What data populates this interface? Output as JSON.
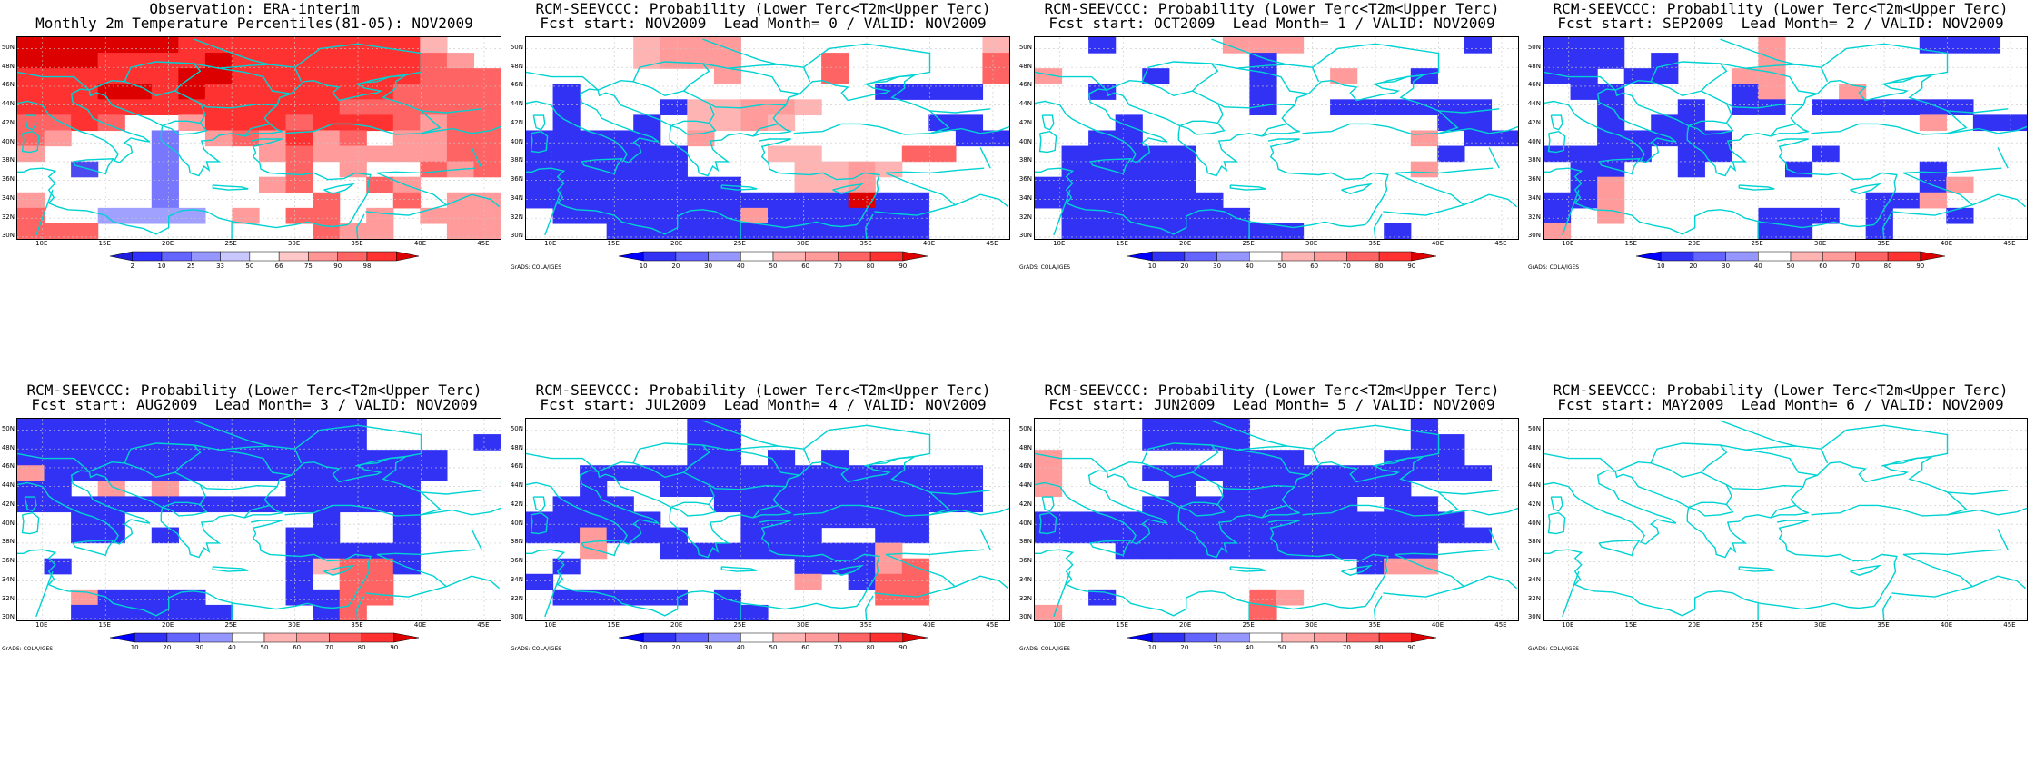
{
  "lat_ticks": [
    "50N",
    "48N",
    "46N",
    "44N",
    "42N",
    "40N",
    "38N",
    "36N",
    "34N",
    "32N",
    "30N"
  ],
  "lon_ticks": [
    "10E",
    "15E",
    "20E",
    "25E",
    "30E",
    "35E",
    "40E",
    "45E"
  ],
  "credit": "GrADS: COLA/IGES",
  "palette": {
    "vdb": "#0000ff",
    "db": "#3232f5",
    "mb": "#4b4bf0",
    "lb": "#7878ff",
    "vlb": "#a0a0ff",
    "w": "#ffffff",
    "vlr": "#ffb4b4",
    "lr": "#ff9b9b",
    "mr": "#ff6464",
    "r": "#ff3232",
    "dr": "#dc0000",
    "coast": "#00d2d2",
    "grid": "#c8c8c8"
  },
  "panels": [
    {
      "title1": "Observation: ERA-interim",
      "title2": "Monthly 2m Temperature Percentiles(81-05): NOV2009",
      "cbar": {
        "colors": [
          "#1e1edc",
          "#3232ff",
          "#6464ff",
          "#9696ff",
          "#c8c8ff",
          "#ffffff",
          "#ffc8c8",
          "#ff9696",
          "#ff6464",
          "#ff3232",
          "#dc0000"
        ],
        "labels": [
          "2",
          "10",
          "25",
          "33",
          "50",
          "66",
          "75",
          "90",
          "98"
        ]
      },
      "grid": [
        "dr dr dr dr dr dr r r r r r r r r r vlr w w",
        "dr dr dr r r r r dr r r r r r r r mr lr w",
        "r r r r r r dr dr r r r r r r r mr mr mr",
        "r r r dr dr r dr r r r r r r r mr mr mr mr",
        "r r r r r r r r r r r r mr mr mr mr mr mr",
        "mr mr r mr w w lr r r r mr r r r mr lr mr mr",
        "mr lr w w w lb w lr mr lr r lr mr w lr lr mr mr",
        "lr w w w w lb w w w lr mr lr lr lr lr lr mr mr",
        "w w mb w w lb w w w w mr w lr w w mr lr mr",
        "w w w w w lb w w w lr mr w w mr lr w w w",
        "lr w w w w lb w w w w w mr w w mr w lr lr",
        "mr w w vlb vlb vlb vlb w lr w mr mr w lr w lr lr lr",
        "mr mr mr w w w w w w w w mr lr lr w w lr lr"
      ]
    },
    {
      "title1": "RCM-SEEVCCC: Probability (Lower Terc<T2m<Upper Terc)",
      "title2": "Fcst start: NOV2009  Lead Month= 0 / VALID: NOV2009",
      "cbar": {
        "colors": [
          "#0000ff",
          "#3232f5",
          "#6464ff",
          "#9696ff",
          "#ffffff",
          "#ffb4b4",
          "#ff9b9b",
          "#ff6464",
          "#ff3232",
          "#dc0000"
        ],
        "labels": [
          "10",
          "20",
          "30",
          "40",
          "50",
          "60",
          "70",
          "80",
          "90"
        ]
      },
      "grid": [
        "w w w w vlr lr lr lr w w w w w w w w w vlr",
        "w w w w vlr lr lr lr w w w mr w w w w w mr",
        "w w w w w w w lr w w w mr w w w w w mr",
        "w db w w w w w w w w w w w db db db db w",
        "w db w w w db vlr vlr lr lr vlr w w w w w w",
        "w db w w db w vlr vlr lr vlr w w w w w db db",
        "db db db db db w lr w w w w w w w w w db db",
        "db db db db db db w w w vlr vlr w w w mr mr w w",
        "db db db db db db w w w w vlr vlr lr vlr w w w w",
        "db db db db db db db db w w vlr vlr lr w w w w w",
        "db db db db db db db db db db db db dr db db w w w",
        "w db db db db db db db lr db db db db db db w w w",
        "w w w db db db db db db db db db db db db w w w"
      ]
    },
    {
      "title1": "RCM-SEEVCCC: Probability (Lower Terc<T2m<Upper Terc)",
      "title2": "Fcst start: OCT2009  Lead Month= 1 / VALID: NOV2009",
      "cbar": {
        "colors": [
          "#0000ff",
          "#3232f5",
          "#6464ff",
          "#9696ff",
          "#ffffff",
          "#ffb4b4",
          "#ff9b9b",
          "#ff6464",
          "#ff3232",
          "#dc0000"
        ],
        "labels": [
          "10",
          "20",
          "30",
          "40",
          "50",
          "60",
          "70",
          "80",
          "90"
        ]
      },
      "grid": [
        "w w db w w w w lr lr lr w w w w w w db w",
        "w w w w w w w w db w w w w w w w w w",
        "lr w w w db w w w db w w lr w w db w w w",
        "w w db w w w w w db w w w w w w w w w",
        "w w w w w w w w db w w db db db db db db w",
        "w w w db w w w w w w w w w w w db db w",
        "w w db db w w w w w w w w w w lr w db db",
        "w db db db db db w w w w w w w w w db w w",
        "w db db db db db w w w w w w w w lr w w w",
        "db db db db db db w w w w w w w w w w w w",
        "db db db db db db db w w w w w w w w w w w",
        "w db db db db db db db w w w w w w w w w w",
        "w db db db db db db db db db w w w db w w w w"
      ]
    },
    {
      "title1": "RCM-SEEVCCC: Probability (Lower Terc<T2m<Upper Terc)",
      "title2": "Fcst start: SEP2009  Lead Month= 2 / VALID: NOV2009",
      "cbar": {
        "colors": [
          "#0000ff",
          "#3232f5",
          "#6464ff",
          "#9696ff",
          "#ffffff",
          "#ffb4b4",
          "#ff9b9b",
          "#ff6464",
          "#ff3232",
          "#dc0000"
        ],
        "labels": [
          "10",
          "20",
          "30",
          "40",
          "50",
          "60",
          "70",
          "80",
          "90"
        ]
      },
      "grid": [
        "db db db w w w w w lr w w w w w db db db w",
        "db db db w db w w w lr w w w w w w w w w",
        "db db w db db w w lr lr w w w w w w w w w",
        "w db db w w w w db lr w w lr w w w w w w",
        "w w db w w db w db db w db db db db db db w w",
        "w w db w db db w w w w w w w w lr w db db",
        "w w db db db db db w w w w w w w w w w w",
        "db db db db w db db w w w db w w w w w w w",
        "w db db w w db w w w db w w w w db w w w",
        "w db lr w w w w w w w w w w w db lr w w",
        "db db lr w w w w w w w w w db db lr w w w",
        "db w lr w w w w w db db db w db w w db w w",
        "lr w w w w w w w db db w w db w w w w w"
      ]
    },
    {
      "title1": "RCM-SEEVCCC: Probability (Lower Terc<T2m<Upper Terc)",
      "title2": "Fcst start: AUG2009  Lead Month= 3 / VALID: NOV2009",
      "cbar": {
        "colors": [
          "#0000ff",
          "#3232f5",
          "#6464ff",
          "#9696ff",
          "#ffffff",
          "#ffb4b4",
          "#ff9b9b",
          "#ff6464",
          "#ff3232",
          "#dc0000"
        ],
        "labels": [
          "10",
          "20",
          "30",
          "40",
          "50",
          "60",
          "70",
          "80",
          "90"
        ]
      },
      "grid": [
        "db db db db db db db db db db db db db w w w w w",
        "db db db db db db db db db db db db db w w w w db",
        "db db db db db db db db db db db db db db db db w w",
        "lr db db db db db db db db db db db db db db db w w",
        "db db w lr w lr w w w w db db db db db w w w",
        "db db db db db db db db db db db db db db db w w w",
        "w w db db w w w w w w w db w w db w w w",
        "w w db db w db w w w w db db w w db w w w",
        "w w w w w w w w w w db db db db db w w w",
        "w db w w w w w w w w db vlr mr mr db w w w",
        "w w w w w w w w w w db w mr mr w w w w",
        "w w lr db db db db w w w db db mr mr w w w w",
        "w w db db db db db db w w w db mr w w w w w"
      ]
    },
    {
      "title1": "RCM-SEEVCCC: Probability (Lower Terc<T2m<Upper Terc)",
      "title2": "Fcst start: JUL2009  Lead Month= 4 / VALID: NOV2009",
      "cbar": {
        "colors": [
          "#0000ff",
          "#3232f5",
          "#6464ff",
          "#9696ff",
          "#ffffff",
          "#ffb4b4",
          "#ff9b9b",
          "#ff6464",
          "#ff3232",
          "#dc0000"
        ],
        "labels": [
          "10",
          "20",
          "30",
          "40",
          "50",
          "60",
          "70",
          "80",
          "90"
        ]
      },
      "grid": [
        "w w w w w w db db w w w w w w w w w w",
        "w w w w w w db db w w w w w w w w w w",
        "w w w w w w db db w db w db w w w w w w",
        "w w db db db db db db db db db db db db db db db w",
        "w w db w w db db db db db db db db db db db db w",
        "w db db db w w w db db db db db db db db db db w",
        "db db db db db w w w db db db db db db db w w w",
        "db db lr db db db w w db db db w w db db w w w",
        "w w lr w w db db db db db db db db lr w w w w",
        "w db w w w w w w w w db db db lr mr w w w",
        "db w w w w w w w w w lr w db mr mr w w w",
        "w db db db db db w db w w w w w mr mr w w w",
        "w w w w w w w db db w w w w w w w w w"
      ]
    },
    {
      "title1": "RCM-SEEVCCC: Probability (Lower Terc<T2m<Upper Terc)",
      "title2": "Fcst start: JUN2009  Lead Month= 5 / VALID: NOV2009",
      "cbar": {
        "colors": [
          "#0000ff",
          "#3232f5",
          "#6464ff",
          "#9696ff",
          "#ffffff",
          "#ffb4b4",
          "#ff9b9b",
          "#ff6464",
          "#ff3232",
          "#dc0000"
        ],
        "labels": [
          "10",
          "20",
          "30",
          "40",
          "50",
          "60",
          "70",
          "80",
          "90"
        ]
      },
      "grid": [
        "w w w w db db db db w w w w w w db w w w",
        "w w w w db db db db w w w w w w db db w w",
        "lr w w w w w w db db db w w w db db db w w",
        "lr w w w db db db db db db db db db db db db db w",
        "lr w w w w db w db db db db db db db w w w w",
        "w w w w db db db db db db db db w db db w w w",
        "db db db db db db db db db db db db db db db db w w",
        "db db db db db db db db db db db db db db db db db w",
        "w w w db db db db db db db db db db db db w w w",
        "w w w w w w w w w w w w db lr lr w w w",
        "w w w w w w w w w w w w w w w w w w",
        "w w db w w w w w mr lr w w w w w w w w",
        "lr w w w w w w w mr w w w w w w w w w"
      ]
    },
    {
      "title1": "RCM-SEEVCCC: Probability (Lower Terc<T2m<Upper Terc)",
      "title2": "Fcst start: MAY2009  Lead Month= 6 / VALID: NOV2009",
      "cbar": null,
      "grid": []
    }
  ]
}
